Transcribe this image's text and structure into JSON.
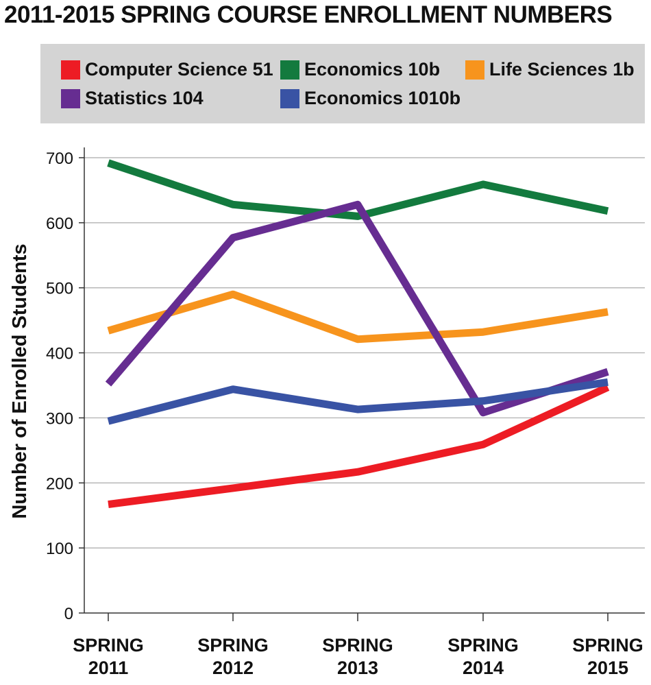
{
  "chart_data": {
    "type": "line",
    "title": "2011-2015 SPRING COURSE ENROLLMENT NUMBERS",
    "xlabel": "",
    "ylabel": "Number of Enrolled Students",
    "categories": [
      [
        "SPRING",
        "2011"
      ],
      [
        "SPRING",
        "2012"
      ],
      [
        "SPRING",
        "2013"
      ],
      [
        "SPRING",
        "2014"
      ],
      [
        "SPRING",
        "2015"
      ]
    ],
    "ylim": [
      0,
      700
    ],
    "yticks": [
      0,
      100,
      200,
      300,
      400,
      500,
      600,
      700
    ],
    "grid": true,
    "legend_position": "top",
    "series": [
      {
        "name": "Computer Science 51",
        "color": "#ed1c24",
        "values": [
          167,
          192,
          217,
          259,
          347
        ]
      },
      {
        "name": "Economics 10b",
        "color": "#137a3e",
        "values": [
          692,
          628,
          610,
          659,
          618
        ]
      },
      {
        "name": "Life Sciences 1b",
        "color": "#f7941d",
        "values": [
          434,
          490,
          421,
          432,
          463
        ]
      },
      {
        "name": "Statistics 104",
        "color": "#662d91",
        "values": [
          352,
          577,
          628,
          308,
          371
        ]
      },
      {
        "name": "Economics 1010b",
        "color": "#3953a4",
        "values": [
          295,
          344,
          313,
          326,
          355
        ]
      }
    ]
  }
}
